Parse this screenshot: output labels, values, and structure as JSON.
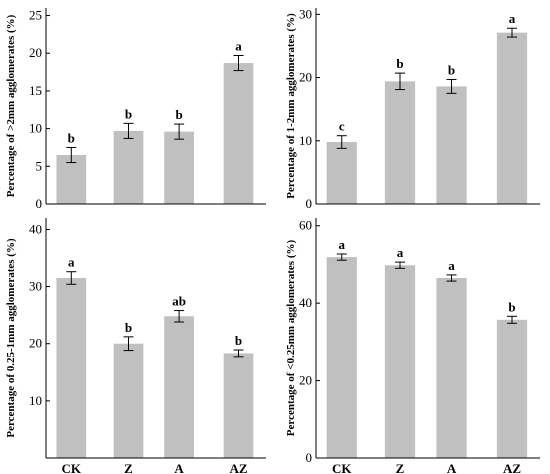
{
  "colors": {
    "bar": "#c0c0c0",
    "axis": "#000000",
    "errorbar": "#000000"
  },
  "chart_data": [
    {
      "type": "bar",
      "categories": [
        "CK",
        "Z",
        "A",
        "AZ"
      ],
      "show_categories": false,
      "values": [
        6.5,
        9.7,
        9.6,
        18.7
      ],
      "errors": [
        1.0,
        1.0,
        1.0,
        1.0
      ],
      "significance": [
        "b",
        "b",
        "b",
        "a"
      ],
      "ylabel": "Percentage of >2mm agglomerates (%)",
      "ylim": [
        0,
        26
      ],
      "yticks": [
        0,
        5,
        10,
        15,
        20,
        25
      ],
      "grid": false
    },
    {
      "type": "bar",
      "categories": [
        "CK",
        "Z",
        "A",
        "AZ"
      ],
      "show_categories": false,
      "values": [
        9.8,
        19.4,
        18.6,
        27.1
      ],
      "errors": [
        1.0,
        1.3,
        1.1,
        0.7
      ],
      "significance": [
        "c",
        "b",
        "b",
        "a"
      ],
      "ylabel": "Percentage of 1-2mm agglomerates (%)",
      "ylim": [
        0,
        31
      ],
      "yticks": [
        0,
        10,
        20,
        30
      ],
      "grid": false
    },
    {
      "type": "bar",
      "categories": [
        "CK",
        "Z",
        "A",
        "AZ"
      ],
      "show_categories": true,
      "values": [
        31.5,
        20.0,
        24.8,
        18.3
      ],
      "errors": [
        1.1,
        1.2,
        1.0,
        0.6
      ],
      "significance": [
        "a",
        "b",
        "ab",
        "b"
      ],
      "ylabel": "Percentage of 0.25-1mm agglomerates (%)",
      "ylim": [
        0,
        42
      ],
      "yticks": [
        10,
        20,
        30,
        40
      ],
      "grid": false
    },
    {
      "type": "bar",
      "categories": [
        "CK",
        "Z",
        "A",
        "AZ"
      ],
      "show_categories": true,
      "values": [
        51.9,
        49.8,
        46.5,
        35.7
      ],
      "errors": [
        0.8,
        0.8,
        0.8,
        0.9
      ],
      "significance": [
        "a",
        "a",
        "a",
        "b"
      ],
      "ylabel": "Percentage of <0.25mm agglomerates (%)",
      "ylim": [
        0,
        62
      ],
      "yticks": [
        0,
        20,
        40,
        60
      ],
      "grid": false
    }
  ]
}
